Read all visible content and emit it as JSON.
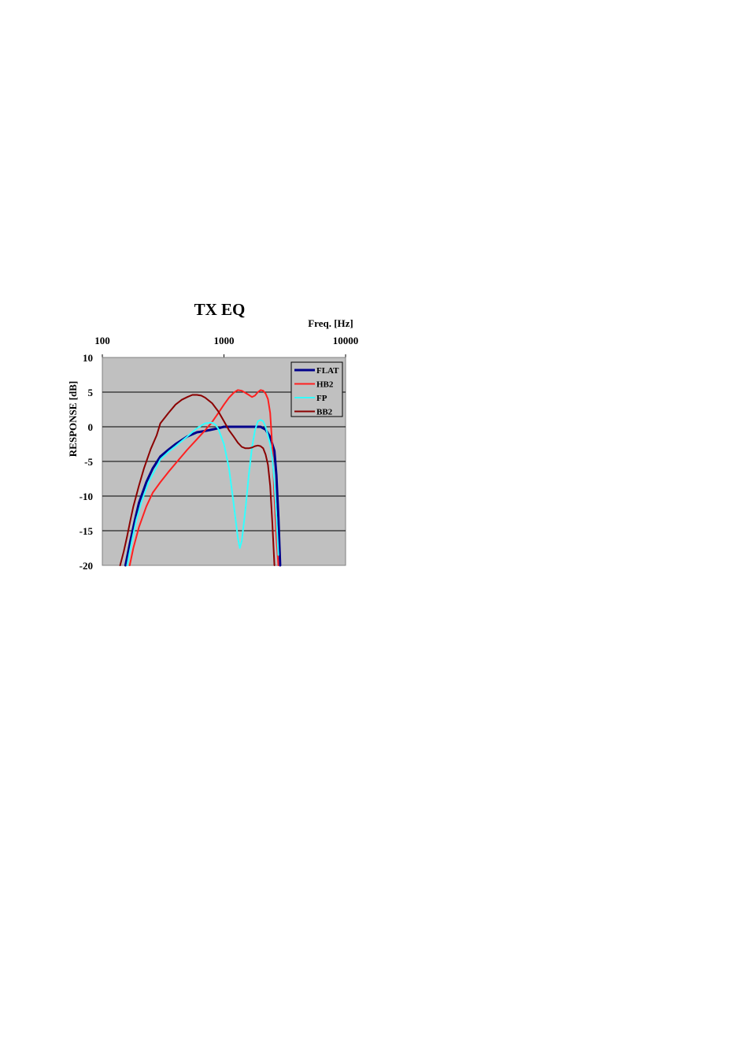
{
  "chart_data": {
    "type": "line",
    "title": "TX EQ",
    "xlabel": "Freq. [Hz]",
    "ylabel": "RESPONSE [dB]",
    "x_scale": "log",
    "xlim": [
      100,
      10000
    ],
    "ylim": [
      -20,
      10
    ],
    "x_ticks": [
      "100",
      "1000",
      "10000"
    ],
    "y_ticks": [
      "10",
      "5",
      "0",
      "-5",
      "-10",
      "-15",
      "-20"
    ],
    "y_tick_values": [
      10,
      5,
      0,
      -5,
      -10,
      -15,
      -20
    ],
    "x_tick_values": [
      100,
      1000,
      10000
    ],
    "grid": "horizontal",
    "legend_position": "top-right",
    "series": [
      {
        "name": "FLAT",
        "color": "#00008b",
        "x": [
          155,
          170,
          185,
          200,
          230,
          260,
          300,
          350,
          400,
          500,
          600,
          700,
          800,
          900,
          1000,
          1200,
          1500,
          1800,
          2000,
          2200,
          2400,
          2600,
          2700,
          2800,
          2900
        ],
        "y": [
          -20,
          -16.5,
          -13.5,
          -11,
          -8,
          -6,
          -4.3,
          -3.3,
          -2.5,
          -1.4,
          -0.8,
          -0.6,
          -0.4,
          -0.2,
          0,
          0,
          0,
          0,
          0,
          -0.4,
          -1.5,
          -3.5,
          -7,
          -13,
          -20
        ]
      },
      {
        "name": "HB2",
        "color": "#ff2020",
        "x": [
          168,
          180,
          200,
          230,
          260,
          300,
          350,
          400,
          500,
          600,
          700,
          800,
          900,
          1000,
          1100,
          1200,
          1300,
          1400,
          1500,
          1600,
          1700,
          1800,
          1900,
          2000,
          2100,
          2200,
          2300,
          2400,
          2500,
          2600,
          2700,
          2800
        ],
        "y": [
          -20,
          -17.5,
          -14.5,
          -11.5,
          -9.5,
          -8,
          -6.5,
          -5.3,
          -3.3,
          -1.8,
          -0.5,
          0.7,
          2,
          3.2,
          4.2,
          4.9,
          5.3,
          5.2,
          4.9,
          4.6,
          4.3,
          4.5,
          5,
          5.3,
          5.2,
          4.8,
          4,
          2,
          -3,
          -10,
          -16,
          -20
        ]
      },
      {
        "name": "FP",
        "color": "#33ffff",
        "x": [
          160,
          175,
          190,
          210,
          240,
          270,
          300,
          350,
          400,
          500,
          600,
          700,
          800,
          850,
          900,
          1000,
          1100,
          1200,
          1300,
          1350,
          1400,
          1500,
          1600,
          1700,
          1800,
          1900,
          2000,
          2100,
          2200,
          2300,
          2400,
          2500,
          2600,
          2700,
          2800
        ],
        "y": [
          -20,
          -16.5,
          -13.5,
          -10.8,
          -8,
          -6.3,
          -4.7,
          -3.6,
          -2.8,
          -1.4,
          -0.2,
          0.5,
          0.6,
          0.3,
          -0.3,
          -2.5,
          -6,
          -11,
          -16,
          -17.5,
          -16.5,
          -12,
          -7,
          -3,
          -0.5,
          0.8,
          1,
          0.8,
          0,
          -1.3,
          -2.5,
          -4.5,
          -8,
          -13,
          -18.5
        ]
      },
      {
        "name": "BB2",
        "color": "#8b0000",
        "x": [
          140,
          150,
          160,
          170,
          180,
          200,
          220,
          250,
          280,
          300,
          350,
          400,
          450,
          500,
          550,
          600,
          650,
          700,
          800,
          900,
          1000,
          1100,
          1200,
          1300,
          1400,
          1500,
          1600,
          1700,
          1800,
          1900,
          2000,
          2100,
          2200,
          2300,
          2400,
          2500,
          2600
        ],
        "y": [
          -20,
          -18,
          -15.8,
          -13.5,
          -11.5,
          -8.5,
          -6,
          -3.2,
          -1.2,
          0.5,
          2,
          3.2,
          3.9,
          4.3,
          4.6,
          4.6,
          4.5,
          4.2,
          3.4,
          2.2,
          0.8,
          -0.5,
          -1.4,
          -2.3,
          -2.9,
          -3.1,
          -3.1,
          -3,
          -2.8,
          -2.7,
          -2.8,
          -3.1,
          -4,
          -5.5,
          -8.5,
          -14,
          -20
        ]
      }
    ]
  }
}
